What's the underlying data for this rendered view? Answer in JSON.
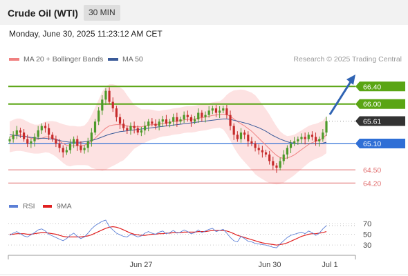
{
  "header": {
    "title": "Crude Oil (WTI)",
    "timeframe": "30 MIN"
  },
  "datetime": "Monday, June 30, 2025 11:23:12 AM CET",
  "credit": "Research © 2025 Trading Central",
  "colors": {
    "resistance": "#5aa514",
    "pivot": "#2f6fd6",
    "support": "#e06d6d",
    "current": "#333333",
    "bollinger_fill": "#fde2e2",
    "ma20": "#f08080",
    "ma50": "#3a5a99",
    "candle_up": "#4d9a2a",
    "candle_down": "#c62c2c",
    "rsi": "#5b7fd6",
    "rsi_ma": "#e02020",
    "arrow": "#2f63b3"
  },
  "chart_data": [
    {
      "type": "candlestick",
      "title": "Crude Oil (WTI)",
      "timeframe": "30 MIN",
      "legend": [
        {
          "name": "MA 20 + Bollinger Bands",
          "color": "#f08080"
        },
        {
          "name": "MA 50",
          "color": "#3a5a99"
        }
      ],
      "ylim": [
        64.0,
        66.75
      ],
      "x_labels": [
        "Jun 27",
        "Jun 30",
        "Jul 1"
      ],
      "levels": [
        {
          "value": 66.4,
          "label": "66.40",
          "kind": "resistance"
        },
        {
          "value": 66.0,
          "label": "66.00",
          "kind": "resistance"
        },
        {
          "value": 65.61,
          "label": "65.61",
          "kind": "current"
        },
        {
          "value": 65.1,
          "label": "65.10",
          "kind": "pivot"
        },
        {
          "value": 64.5,
          "label": "64.50",
          "kind": "support"
        },
        {
          "value": 64.2,
          "label": "64.20",
          "kind": "support"
        }
      ],
      "price_path": [
        65.2,
        65.3,
        65.4,
        65.35,
        65.2,
        65.1,
        65.15,
        65.25,
        65.4,
        65.5,
        65.45,
        65.3,
        65.2,
        65.1,
        65.0,
        64.9,
        64.95,
        65.1,
        65.2,
        65.05,
        64.95,
        65.0,
        65.15,
        65.35,
        65.6,
        65.85,
        66.1,
        66.3,
        66.05,
        65.9,
        65.7,
        65.55,
        65.45,
        65.4,
        65.5,
        65.45,
        65.35,
        65.4,
        65.5,
        65.6,
        65.55,
        65.5,
        65.6,
        65.65,
        65.55,
        65.6,
        65.7,
        65.6,
        65.65,
        65.75,
        65.7,
        65.6,
        65.65,
        65.8,
        65.7,
        65.75,
        65.85,
        65.9,
        65.8,
        65.85,
        65.9,
        65.75,
        65.5,
        65.3,
        65.2,
        65.35,
        65.3,
        65.15,
        65.1,
        65.0,
        64.95,
        64.9,
        64.85,
        64.7,
        64.6,
        64.55,
        64.7,
        64.85,
        65.0,
        65.1,
        65.15,
        65.2,
        65.25,
        65.2,
        65.3,
        65.25,
        65.15,
        65.2,
        65.35,
        65.61
      ],
      "ma20": [
        65.25,
        65.28,
        65.3,
        65.3,
        65.28,
        65.25,
        65.22,
        65.2,
        65.2,
        65.22,
        65.25,
        65.25,
        65.23,
        65.2,
        65.15,
        65.1,
        65.06,
        65.04,
        65.05,
        65.05,
        65.05,
        65.06,
        65.1,
        65.15,
        65.22,
        65.3,
        65.38,
        65.45,
        65.5,
        65.52,
        65.53,
        65.53,
        65.52,
        65.5,
        65.49,
        65.48,
        65.48,
        65.48,
        65.5,
        65.52,
        65.53,
        65.53,
        65.54,
        65.56,
        65.57,
        65.58,
        65.6,
        65.61,
        65.62,
        65.64,
        65.65,
        65.65,
        65.66,
        65.68,
        65.69,
        65.7,
        65.72,
        65.74,
        65.75,
        65.76,
        65.77,
        65.76,
        65.72,
        65.66,
        65.6,
        65.55,
        65.5,
        65.44,
        65.38,
        65.3,
        65.22,
        65.14,
        65.06,
        64.98,
        64.9,
        64.83,
        64.78,
        64.76,
        64.77,
        64.8,
        64.84,
        64.9,
        64.96,
        65.02,
        65.08,
        65.12,
        65.15,
        65.18,
        65.22,
        65.3
      ],
      "ma50": [
        65.3,
        65.29,
        65.28,
        65.27,
        65.26,
        65.25,
        65.24,
        65.23,
        65.22,
        65.22,
        65.22,
        65.21,
        65.2,
        65.19,
        65.17,
        65.15,
        65.14,
        65.13,
        65.13,
        65.13,
        65.13,
        65.14,
        65.15,
        65.17,
        65.19,
        65.22,
        65.25,
        65.28,
        65.31,
        65.33,
        65.35,
        65.37,
        65.38,
        65.39,
        65.4,
        65.41,
        65.42,
        65.43,
        65.44,
        65.45,
        65.46,
        65.47,
        65.48,
        65.49,
        65.5,
        65.51,
        65.52,
        65.53,
        65.54,
        65.55,
        65.56,
        65.57,
        65.58,
        65.59,
        65.6,
        65.61,
        65.62,
        65.63,
        65.64,
        65.65,
        65.66,
        65.66,
        65.65,
        65.63,
        65.61,
        65.59,
        65.57,
        65.55,
        65.52,
        65.49,
        65.46,
        65.42,
        65.38,
        65.33,
        65.28,
        65.24,
        65.2,
        65.17,
        65.14,
        65.12,
        65.11,
        65.1,
        65.1,
        65.1,
        65.1,
        65.1,
        65.1,
        65.1,
        65.11,
        65.13
      ],
      "bollinger_width": [
        0.35,
        0.36,
        0.37,
        0.37,
        0.36,
        0.35,
        0.34,
        0.33,
        0.33,
        0.34,
        0.35,
        0.36,
        0.38,
        0.4,
        0.42,
        0.44,
        0.46,
        0.46,
        0.45,
        0.44,
        0.44,
        0.45,
        0.5,
        0.6,
        0.7,
        0.8,
        0.9,
        0.95,
        0.95,
        0.93,
        0.9,
        0.85,
        0.8,
        0.7,
        0.6,
        0.5,
        0.45,
        0.4,
        0.38,
        0.36,
        0.34,
        0.32,
        0.3,
        0.3,
        0.3,
        0.3,
        0.3,
        0.3,
        0.3,
        0.3,
        0.3,
        0.3,
        0.3,
        0.3,
        0.3,
        0.3,
        0.3,
        0.3,
        0.3,
        0.3,
        0.35,
        0.45,
        0.55,
        0.65,
        0.72,
        0.78,
        0.82,
        0.85,
        0.88,
        0.9,
        0.88,
        0.85,
        0.82,
        0.78,
        0.72,
        0.66,
        0.6,
        0.55,
        0.5,
        0.48,
        0.46,
        0.45,
        0.44,
        0.43,
        0.42,
        0.41,
        0.4,
        0.4,
        0.4,
        0.42
      ]
    },
    {
      "type": "line",
      "title": "RSI",
      "legend": [
        {
          "name": "RSI",
          "color": "#5b7fd6"
        },
        {
          "name": "9MA",
          "color": "#e02020"
        }
      ],
      "ylim": [
        20,
        80
      ],
      "y_ticks": [
        "70",
        "50",
        "30"
      ],
      "y_tick_values": [
        70,
        50,
        30
      ],
      "rsi": [
        48,
        52,
        55,
        51,
        47,
        45,
        49,
        53,
        58,
        60,
        56,
        50,
        47,
        44,
        41,
        38,
        42,
        48,
        52,
        46,
        42,
        45,
        52,
        60,
        66,
        70,
        74,
        76,
        64,
        58,
        52,
        49,
        46,
        45,
        50,
        48,
        45,
        47,
        52,
        55,
        52,
        50,
        54,
        56,
        51,
        53,
        57,
        52,
        54,
        58,
        55,
        51,
        53,
        58,
        53,
        56,
        59,
        61,
        55,
        57,
        59,
        52,
        44,
        38,
        36,
        46,
        42,
        37,
        36,
        33,
        32,
        31,
        30,
        28,
        26,
        25,
        32,
        38,
        44,
        48,
        50,
        52,
        54,
        51,
        56,
        53,
        48,
        52,
        60,
        66
      ],
      "rsi_ma": [
        50,
        50,
        51,
        51,
        51,
        50,
        50,
        51,
        52,
        53,
        53,
        52,
        51,
        50,
        48,
        46,
        45,
        45,
        45,
        45,
        45,
        46,
        47,
        49,
        52,
        55,
        58,
        61,
        63,
        64,
        63,
        61,
        58,
        55,
        52,
        50,
        49,
        48,
        48,
        49,
        50,
        50,
        51,
        51,
        52,
        52,
        53,
        53,
        53,
        54,
        54,
        54,
        54,
        55,
        55,
        55,
        56,
        57,
        57,
        57,
        57,
        56,
        54,
        51,
        48,
        46,
        44,
        42,
        40,
        38,
        36,
        34,
        33,
        32,
        31,
        30,
        31,
        32,
        34,
        37,
        40,
        43,
        46,
        48,
        50,
        51,
        51,
        52,
        53,
        55
      ]
    }
  ]
}
